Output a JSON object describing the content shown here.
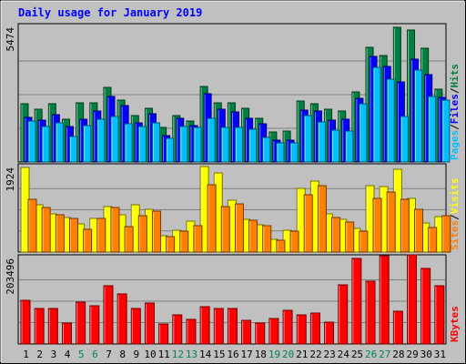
{
  "chart_data": {
    "type": "bar",
    "title": "Daily usage for January 2019",
    "days": [
      "1",
      "2",
      "3",
      "4",
      "5",
      "6",
      "7",
      "8",
      "9",
      "10",
      "11",
      "12",
      "13",
      "14",
      "15",
      "16",
      "17",
      "18",
      "19",
      "20",
      "21",
      "22",
      "23",
      "24",
      "25",
      "26",
      "27",
      "28",
      "29",
      "30",
      "31"
    ],
    "weekend_days": [
      "5",
      "6",
      "12",
      "13",
      "19",
      "20",
      "26",
      "27"
    ],
    "panels": [
      {
        "name": "hits-files-pages",
        "ymax_label": "5474",
        "ymax": 5474,
        "right_label": [
          "Pages",
          "/",
          "Files",
          "/",
          "Hits"
        ],
        "series": [
          {
            "name": "Hits",
            "color": "#008040",
            "values": [
              2350,
              2130,
              2350,
              1750,
              2400,
              2400,
              3030,
              2520,
              1880,
              2190,
              1410,
              1900,
              1670,
              3060,
              2400,
              2390,
              2170,
              1760,
              1220,
              1270,
              2490,
              2350,
              2150,
              2060,
              2850,
              4670,
              4330,
              5470,
              5380,
              4630,
              2970
            ]
          },
          {
            "name": "Files",
            "color": "#0000ff",
            "values": [
              1800,
              1710,
              1920,
              1460,
              1740,
              2060,
              2670,
              2300,
              1590,
              1950,
              1090,
              1760,
              1480,
              2790,
              2160,
              2050,
              1770,
              1540,
              900,
              900,
              2120,
              2070,
              1710,
              1720,
              2580,
              4290,
              3900,
              3270,
              4180,
              3540,
              2620
            ]
          },
          {
            "name": "Pages",
            "color": "#00c0ff",
            "values": [
              1650,
              1430,
              1580,
              1020,
              1480,
              1720,
              1860,
              1560,
              1460,
              1590,
              980,
              1460,
              1390,
              1760,
              1420,
              1390,
              1330,
              990,
              760,
              770,
              1880,
              1620,
              1310,
              1250,
              2350,
              3860,
              3360,
              1850,
              3750,
              2660,
              2500
            ]
          }
        ]
      },
      {
        "name": "visits-sites",
        "ymax_label": "1924",
        "ymax": 1924,
        "right_label": [
          "Sites",
          "/",
          "Visits"
        ],
        "series": [
          {
            "name": "Visits",
            "color": "#ffff00",
            "values": [
              1920,
              1070,
              870,
              790,
              650,
              770,
              1030,
              850,
              1080,
              970,
              370,
              490,
              710,
              1950,
              1810,
              1180,
              750,
              620,
              280,
              490,
              1450,
              1610,
              860,
              740,
              530,
              1520,
              1480,
              1890,
              1220,
              660,
              810
            ]
          },
          {
            "name": "Sites",
            "color": "#ff8000",
            "values": [
              1200,
              1020,
              840,
              760,
              520,
              760,
              1010,
              570,
              830,
              940,
              360,
              480,
              600,
              1540,
              1030,
              1090,
              730,
              590,
              270,
              480,
              1310,
              1510,
              780,
              690,
              480,
              1220,
              1370,
              1210,
              980,
              550,
              820
            ]
          }
        ]
      },
      {
        "name": "kbytes",
        "ymax_label": "203496",
        "ymax": 203496,
        "right_label": [
          "KBytes"
        ],
        "series": [
          {
            "name": "KBytes",
            "color": "#ff0000",
            "values": [
              104000,
              84000,
              84000,
              49000,
              99000,
              91000,
              139000,
              120000,
              84000,
              97000,
              47000,
              70000,
              59000,
              88000,
              85000,
              84000,
              56000,
              49000,
              61000,
              80000,
              70000,
              73000,
              53000,
              141000,
              203000,
              149000,
              209000,
              77000,
              212000,
              179000,
              138000
            ]
          }
        ]
      }
    ]
  }
}
